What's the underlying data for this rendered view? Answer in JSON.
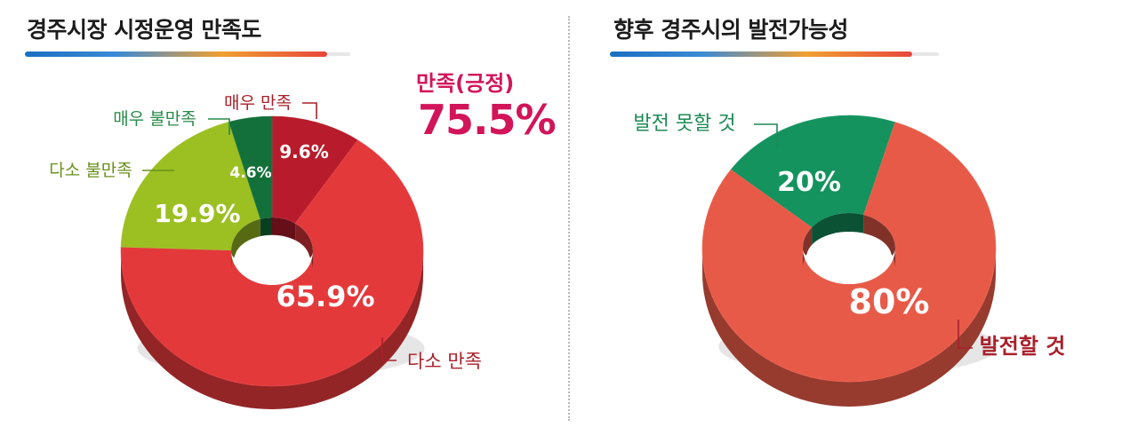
{
  "chart_data": [
    {
      "type": "pie",
      "title": "경주시장 시정운영 만족도",
      "slices": [
        {
          "label": "매우 만족",
          "value": 9.6,
          "display": "9.6%",
          "color": "#b81c2c"
        },
        {
          "label": "다소 만족",
          "value": 65.9,
          "display": "65.9%",
          "color": "#e4393b"
        },
        {
          "label": "다소 불만족",
          "value": 19.9,
          "display": "19.9%",
          "color": "#9cbf22"
        },
        {
          "label": "매우 불만족",
          "value": 4.6,
          "display": "4.6%",
          "color": "#13703a"
        }
      ],
      "callout": {
        "label": "만족(긍정)",
        "value": "75.5%",
        "color": "#d2145a"
      },
      "legend": "callouts"
    },
    {
      "type": "pie",
      "title": "향후 경주시의 발전가능성",
      "slices": [
        {
          "label": "발전 못할 것",
          "value": 20,
          "display": "20%",
          "color": "#14935e"
        },
        {
          "label": "발전할 것",
          "value": 80,
          "display": "80%",
          "color": "#e85a48"
        }
      ],
      "legend": "callouts"
    }
  ],
  "colors": {
    "label_dark_red": "#a8202a",
    "label_green": "#2a8a4a",
    "label_yellow_green": "#6a8f1c",
    "shadow": "#8c1a1e",
    "shadow_green": "#0c5a33"
  }
}
